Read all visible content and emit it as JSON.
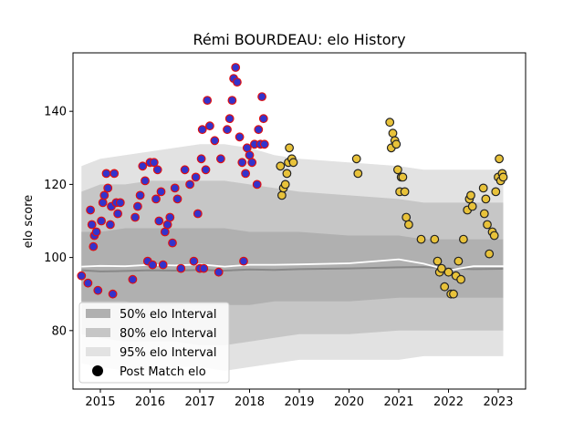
{
  "title": "Rémi BOURDEAU: elo History",
  "chart_data": {
    "type": "scatter",
    "title": "Rémi BOURDEAU: elo History",
    "xlabel": "",
    "ylabel": "elo score",
    "xlim": [
      2014.45,
      2023.55
    ],
    "ylim": [
      64,
      156
    ],
    "x_ticks": [
      2015,
      2016,
      2017,
      2018,
      2019,
      2020,
      2021,
      2022,
      2023
    ],
    "y_ticks": [
      80,
      100,
      120,
      140
    ],
    "grid": false,
    "legend_position": "lower-left",
    "legend": [
      {
        "label": "50% elo Interval",
        "color": "#b0b0b0"
      },
      {
        "label": "80% elo Interval",
        "color": "#c6c6c6"
      },
      {
        "label": "95% elo Interval",
        "color": "#e2e2e2"
      },
      {
        "label": "Post Match elo",
        "color": "#000000"
      }
    ],
    "colors": {
      "early_fill": "#3333cc",
      "early_edge": "#e01010",
      "late_fill": "#e8c23a",
      "late_edge": "#222222",
      "median_line": "#888888",
      "mean_line": "#ffffff"
    },
    "bands": {
      "x": [
        2014.62,
        2015.0,
        2015.5,
        2016.0,
        2016.5,
        2017.0,
        2017.5,
        2018.0,
        2018.5,
        2019.0,
        2020.0,
        2021.0,
        2021.5,
        2022.0,
        2022.5,
        2023.1
      ],
      "p95_low": [
        71,
        70,
        69,
        69,
        70,
        70,
        69,
        70,
        71,
        72,
        72,
        72,
        73,
        73,
        73,
        73
      ],
      "p95_high": [
        125,
        127,
        128,
        129,
        130,
        131,
        131,
        130,
        128,
        127,
        126,
        125,
        124,
        124,
        124,
        124
      ],
      "p80_low": [
        79,
        78,
        77,
        77,
        77,
        76,
        76,
        77,
        78,
        79,
        79,
        80,
        80,
        80,
        80,
        80
      ],
      "p80_high": [
        118,
        120,
        120,
        121,
        121,
        121,
        121,
        120,
        119,
        118,
        117,
        116,
        115,
        115,
        115,
        115
      ],
      "p50_low": [
        88,
        88,
        88,
        87,
        87,
        87,
        87,
        87,
        88,
        88,
        88,
        89,
        89,
        89,
        89,
        89
      ],
      "p50_high": [
        107,
        107,
        108,
        108,
        108,
        108,
        108,
        107,
        107,
        107,
        106,
        106,
        105,
        105,
        105,
        105
      ],
      "median": [
        96.5,
        96.2,
        96.3,
        96.5,
        96.4,
        96.6,
        96.4,
        96.7,
        96.6,
        96.8,
        97.0,
        97.3,
        97.4,
        97.0,
        96.8,
        96.9
      ],
      "mean": [
        97.5,
        97.7,
        97.6,
        98.0,
        97.8,
        98.1,
        97.5,
        98.0,
        98.0,
        98.1,
        98.4,
        99.5,
        98.3,
        96.5,
        97.6,
        97.6
      ]
    },
    "series": [
      {
        "group": "early",
        "points": [
          [
            2014.62,
            95
          ],
          [
            2014.75,
            93
          ],
          [
            2014.8,
            113
          ],
          [
            2014.83,
            109
          ],
          [
            2014.86,
            103
          ],
          [
            2014.88,
            106
          ],
          [
            2014.92,
            107
          ],
          [
            2014.95,
            91
          ],
          [
            2015.02,
            110
          ],
          [
            2015.05,
            115
          ],
          [
            2015.08,
            117
          ],
          [
            2015.12,
            123
          ],
          [
            2015.15,
            119
          ],
          [
            2015.2,
            109
          ],
          [
            2015.22,
            114
          ],
          [
            2015.25,
            90
          ],
          [
            2015.28,
            123
          ],
          [
            2015.32,
            115
          ],
          [
            2015.35,
            112
          ],
          [
            2015.4,
            115
          ],
          [
            2015.65,
            94
          ],
          [
            2015.7,
            111
          ],
          [
            2015.75,
            114
          ],
          [
            2015.8,
            117
          ],
          [
            2015.85,
            125
          ],
          [
            2015.9,
            121
          ],
          [
            2015.95,
            99
          ],
          [
            2016.0,
            126
          ],
          [
            2016.05,
            98
          ],
          [
            2016.08,
            126
          ],
          [
            2016.12,
            116
          ],
          [
            2016.15,
            124
          ],
          [
            2016.18,
            110
          ],
          [
            2016.22,
            118
          ],
          [
            2016.26,
            98
          ],
          [
            2016.3,
            107
          ],
          [
            2016.35,
            109
          ],
          [
            2016.4,
            111
          ],
          [
            2016.45,
            104
          ],
          [
            2016.5,
            119
          ],
          [
            2016.55,
            116
          ],
          [
            2016.62,
            97
          ],
          [
            2016.7,
            124
          ],
          [
            2016.8,
            120
          ],
          [
            2016.88,
            99
          ],
          [
            2016.92,
            122
          ],
          [
            2016.96,
            112
          ],
          [
            2017.0,
            97
          ],
          [
            2017.03,
            127
          ],
          [
            2017.05,
            135
          ],
          [
            2017.08,
            97
          ],
          [
            2017.12,
            124
          ],
          [
            2017.15,
            143
          ],
          [
            2017.2,
            136
          ],
          [
            2017.3,
            132
          ],
          [
            2017.38,
            96
          ],
          [
            2017.42,
            127
          ],
          [
            2017.55,
            135
          ],
          [
            2017.6,
            138
          ],
          [
            2017.65,
            143
          ],
          [
            2017.68,
            149
          ],
          [
            2017.72,
            152
          ],
          [
            2017.75,
            148
          ],
          [
            2017.8,
            133
          ],
          [
            2017.85,
            126
          ],
          [
            2017.88,
            99
          ],
          [
            2017.92,
            123
          ],
          [
            2017.95,
            130
          ],
          [
            2018.0,
            128
          ],
          [
            2018.05,
            126
          ],
          [
            2018.1,
            131
          ],
          [
            2018.15,
            120
          ],
          [
            2018.18,
            135
          ],
          [
            2018.22,
            131
          ],
          [
            2018.25,
            144
          ],
          [
            2018.28,
            138
          ],
          [
            2018.3,
            131
          ]
        ]
      },
      {
        "group": "late",
        "points": [
          [
            2018.62,
            125
          ],
          [
            2018.65,
            117
          ],
          [
            2018.68,
            119
          ],
          [
            2018.72,
            120
          ],
          [
            2018.75,
            123
          ],
          [
            2018.78,
            126
          ],
          [
            2018.8,
            130
          ],
          [
            2018.85,
            127
          ],
          [
            2018.88,
            126
          ],
          [
            2020.15,
            127
          ],
          [
            2020.18,
            123
          ],
          [
            2020.82,
            137
          ],
          [
            2020.85,
            130
          ],
          [
            2020.88,
            134
          ],
          [
            2020.92,
            132
          ],
          [
            2020.95,
            131
          ],
          [
            2020.98,
            124
          ],
          [
            2021.02,
            118
          ],
          [
            2021.05,
            122
          ],
          [
            2021.08,
            122
          ],
          [
            2021.12,
            118
          ],
          [
            2021.15,
            111
          ],
          [
            2021.2,
            109
          ],
          [
            2021.45,
            105
          ],
          [
            2021.72,
            105
          ],
          [
            2021.78,
            99
          ],
          [
            2021.82,
            96
          ],
          [
            2021.86,
            97
          ],
          [
            2021.92,
            92
          ],
          [
            2022.0,
            96
          ],
          [
            2022.05,
            90
          ],
          [
            2022.1,
            90
          ],
          [
            2022.15,
            95
          ],
          [
            2022.2,
            99
          ],
          [
            2022.25,
            94
          ],
          [
            2022.3,
            105
          ],
          [
            2022.38,
            113
          ],
          [
            2022.42,
            116
          ],
          [
            2022.45,
            117
          ],
          [
            2022.48,
            114
          ],
          [
            2022.7,
            119
          ],
          [
            2022.72,
            112
          ],
          [
            2022.75,
            116
          ],
          [
            2022.78,
            109
          ],
          [
            2022.82,
            101
          ],
          [
            2022.88,
            107
          ],
          [
            2022.92,
            106
          ],
          [
            2022.95,
            118
          ],
          [
            2023.0,
            122
          ],
          [
            2023.02,
            127
          ],
          [
            2023.05,
            121
          ],
          [
            2023.08,
            123
          ],
          [
            2023.1,
            122
          ]
        ]
      }
    ]
  }
}
